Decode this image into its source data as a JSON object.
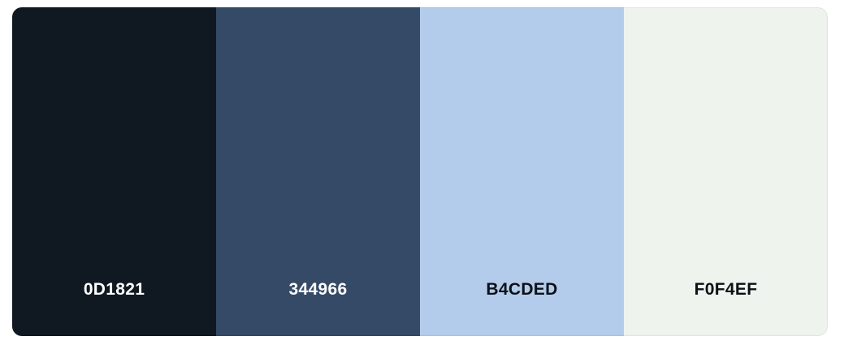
{
  "palette": {
    "swatches": [
      {
        "hex": "0D1821",
        "color": "#101921",
        "text_color": "#ffffff"
      },
      {
        "hex": "344966",
        "color": "#354A66",
        "text_color": "#ffffff"
      },
      {
        "hex": "B4CDED",
        "color": "#B4CCEB",
        "text_color": "#0d1117"
      },
      {
        "hex": "F0F4EF",
        "color": "#EFF3EE",
        "text_color": "#0d1117"
      }
    ]
  }
}
